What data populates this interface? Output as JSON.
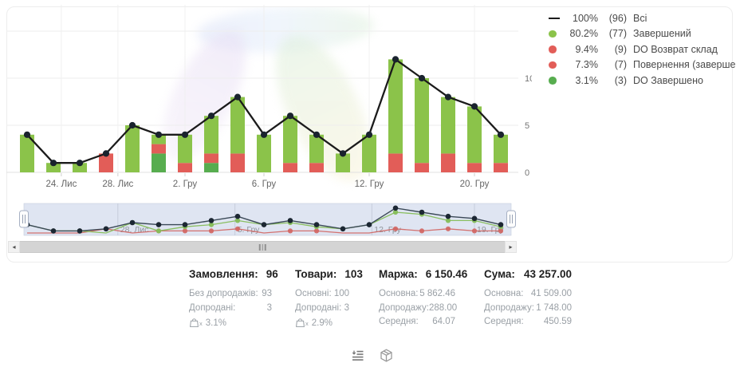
{
  "legend": {
    "items": [
      {
        "marker": "line",
        "color": "#1b1b1b",
        "pct": "100%",
        "count": "(96)",
        "label": "Всі"
      },
      {
        "marker": "dot",
        "color": "#8bc34a",
        "pct": "80.2%",
        "count": "(77)",
        "label": "Завершений"
      },
      {
        "marker": "dot",
        "color": "#e25d58",
        "pct": "9.4%",
        "count": "(9)",
        "label": "DO Возврат склад"
      },
      {
        "marker": "dot",
        "color": "#e25d58",
        "pct": "7.3%",
        "count": "(7)",
        "label": "Повернення (завершений)"
      },
      {
        "marker": "dot",
        "color": "#57ad4f",
        "pct": "3.1%",
        "count": "(3)",
        "label": "DO Завершено"
      }
    ]
  },
  "chart_data": {
    "type": "bar",
    "stacked": true,
    "n_points": 19,
    "series": [
      {
        "name": "DO Завершено",
        "color": "#57ad4f",
        "values": [
          0,
          0,
          0,
          0,
          0,
          2,
          0,
          1,
          0,
          0,
          0,
          0,
          0,
          0,
          0,
          0,
          0,
          0,
          0
        ]
      },
      {
        "name": "DO Возврат склад",
        "color": "#e25d58",
        "values": [
          0,
          0,
          0,
          0,
          0,
          1,
          0,
          1,
          2,
          0,
          0,
          0,
          0,
          0,
          2,
          1,
          2,
          0,
          0
        ]
      },
      {
        "name": "Повернення (завершений)",
        "color": "#e25d58",
        "values": [
          0,
          0,
          0,
          2,
          0,
          0,
          1,
          0,
          0,
          0,
          1,
          1,
          0,
          0,
          0,
          0,
          0,
          1,
          1
        ]
      },
      {
        "name": "Завершений",
        "color": "#8bc34a",
        "values": [
          4,
          1,
          1,
          0,
          5,
          1,
          3,
          4,
          6,
          4,
          5,
          3,
          2,
          4,
          10,
          9,
          6,
          6,
          3
        ]
      }
    ],
    "line_series": {
      "name": "Всі",
      "color": "#1b1b1b",
      "dot_color": "#1a232e",
      "values": [
        4,
        1,
        1,
        2,
        5,
        4,
        4,
        6,
        8,
        4,
        6,
        4,
        2,
        4,
        12,
        10,
        8,
        7,
        4
      ]
    },
    "x_ticks": [
      {
        "label": "24. Лис",
        "pos": 1.3
      },
      {
        "label": "28. Лис",
        "pos": 3.45
      },
      {
        "label": "2. Гру",
        "pos": 6
      },
      {
        "label": "6. Гру",
        "pos": 9
      },
      {
        "label": "12. Гру",
        "pos": 13
      },
      {
        "label": "20. Гру",
        "pos": 17
      }
    ],
    "y_ticks": [
      0,
      5,
      10
    ],
    "ylim": [
      0,
      15
    ],
    "grid": true,
    "legend_position": "top-right",
    "title": "",
    "xlabel": "",
    "ylabel": ""
  },
  "minimap": {
    "selection_color": "#dbe2f1",
    "line_colors": {
      "total": "#3a4856",
      "green": "#85bd58",
      "red": "#d26460"
    },
    "x_ticks": [
      {
        "label": "28. Лис",
        "pos": 3.45
      },
      {
        "label": "5. Гру",
        "pos": 7.9
      },
      {
        "label": "12. Гру",
        "pos": 13.1
      },
      {
        "label": "19. Гру",
        "pos": 17
      }
    ]
  },
  "scrollbar": {
    "left_arrow": "◂",
    "right_arrow": "▸"
  },
  "stats": {
    "columns": [
      {
        "title": "Замовлення:",
        "value": "96",
        "rows": [
          [
            "Без допродажів:",
            "93"
          ],
          [
            "Допродані:",
            "3"
          ]
        ],
        "upsell_pct": "3.1%"
      },
      {
        "title": "Товари:",
        "value": "103",
        "rows": [
          [
            "Основні:",
            "100"
          ],
          [
            "Допродані:",
            "3"
          ]
        ],
        "upsell_pct": "2.9%"
      },
      {
        "title": "Маржа:",
        "value": "6 150.46",
        "rows": [
          [
            "Основна:",
            "5 862.46"
          ],
          [
            "Допродажу:",
            "288.00"
          ],
          [
            "Середня:",
            "64.07"
          ]
        ]
      },
      {
        "title": "Сума:",
        "value": "43 257.00",
        "rows": [
          [
            "Основна:",
            "41 509.00"
          ],
          [
            "Допродажу:",
            "1 748.00"
          ],
          [
            "Середня:",
            "450.59"
          ]
        ]
      }
    ]
  },
  "toolbar": {
    "icons": [
      {
        "name": "list-view-icon"
      },
      {
        "name": "package-view-icon"
      }
    ]
  }
}
